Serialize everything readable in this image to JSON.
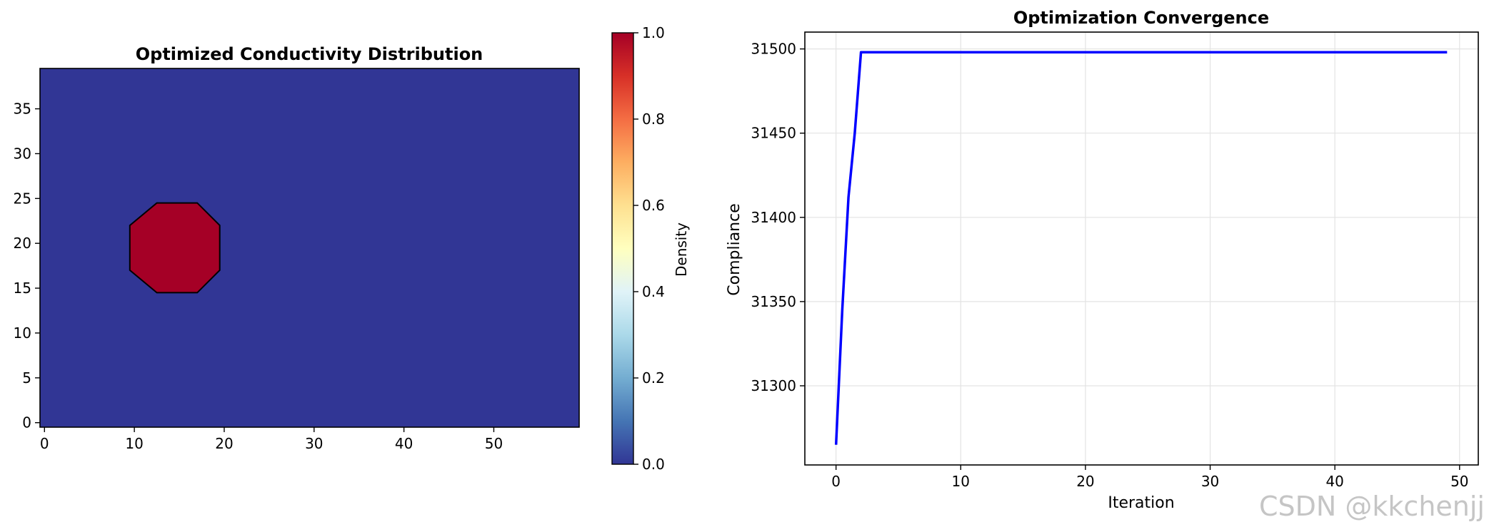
{
  "chart_data": [
    {
      "type": "heatmap",
      "title": "Optimized Conductivity Distribution",
      "xlabel": "",
      "ylabel": "",
      "xlim": [
        -0.5,
        59.5
      ],
      "ylim": [
        -0.5,
        39.5
      ],
      "xticks": [
        0,
        10,
        20,
        30,
        40,
        50
      ],
      "yticks": [
        0,
        5,
        10,
        15,
        20,
        25,
        30,
        35
      ],
      "background_value": 0.0,
      "inclusion": {
        "value": 1.0,
        "shape": "octagon",
        "vertices": [
          [
            12.5,
            14.5
          ],
          [
            17.0,
            14.5
          ],
          [
            19.5,
            17.0
          ],
          [
            19.5,
            22.0
          ],
          [
            17.0,
            24.5
          ],
          [
            12.5,
            24.5
          ],
          [
            9.5,
            22.0
          ],
          [
            9.5,
            17.0
          ]
        ]
      },
      "colormap": "RdYlBu_r",
      "colorbar": {
        "label": "Density",
        "range": [
          0.0,
          1.0
        ],
        "ticks": [
          "0.0",
          "0.2",
          "0.4",
          "0.6",
          "0.8",
          "1.0"
        ],
        "colors": [
          "#313695",
          "#4575b4",
          "#74add1",
          "#abd9e9",
          "#e0f3f8",
          "#ffffbf",
          "#fee090",
          "#fdae61",
          "#f46d43",
          "#d73027",
          "#a50026"
        ]
      }
    },
    {
      "type": "line",
      "title": "Optimization Convergence",
      "xlabel": "Iteration",
      "ylabel": "Compliance",
      "xlim": [
        -2.5,
        51.5
      ],
      "ylim": [
        31253,
        31510
      ],
      "xticks": [
        0,
        10,
        20,
        30,
        40,
        50
      ],
      "yticks": [
        31300,
        31350,
        31400,
        31450,
        31500
      ],
      "grid": true,
      "series": [
        {
          "color": "#0000ff",
          "x": [
            0,
            0.5,
            1,
            1.5,
            2,
            3,
            10,
            20,
            30,
            40,
            49
          ],
          "y": [
            31265,
            31345,
            31412,
            31450,
            31498,
            31498,
            31498,
            31498,
            31498,
            31498,
            31498
          ]
        }
      ]
    }
  ],
  "watermark": "CSDN @kkchenjj"
}
